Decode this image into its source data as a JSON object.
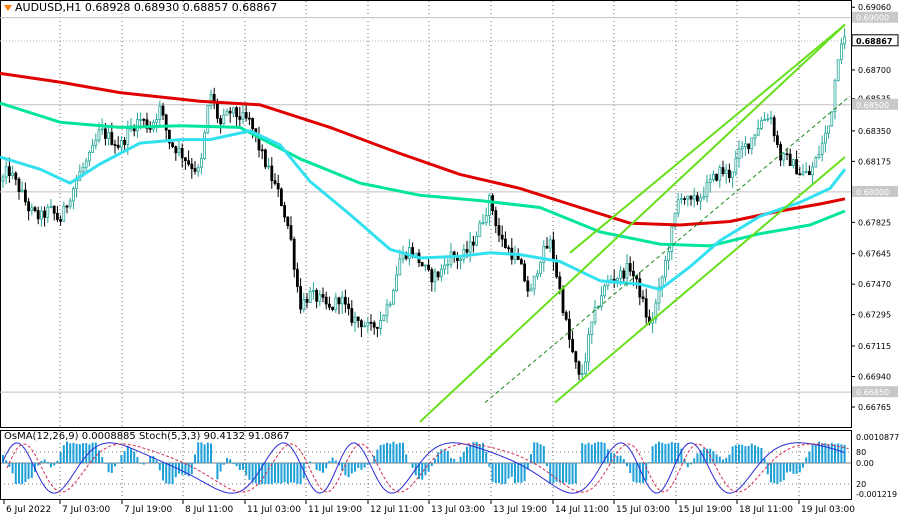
{
  "header": {
    "symbol": "AUDUSD,H1",
    "ohlc": "0.68928 0.68930 0.68857 0.68867",
    "arrow_icon": "triangle-down-icon"
  },
  "indicator": {
    "label": "OsMA(12,26,9) 0.0008885  Stoch(5,3,3) 90.4132 91.0867"
  },
  "colors": {
    "bull": "#26a69a",
    "bear": "#000000",
    "ma_red": "#e00000",
    "ma_green": "#00e59e",
    "ma_cyan": "#33e0f0",
    "channel": "#66e01a",
    "osma": "#1e9fd8",
    "stoch_main": "#2a2ad8",
    "stoch_signal": "#d23050",
    "grid": "#000000"
  },
  "chart_data": {
    "type": "candlestick",
    "price_axis": {
      "range": [
        0.6665,
        0.6909
      ],
      "ticks": [
        "0.69060",
        "0.68700",
        "0.68535",
        "0.68350",
        "0.68175",
        "0.67825",
        "0.67645",
        "0.67470",
        "0.67295",
        "0.67115",
        "0.66940",
        "0.66765"
      ],
      "marked_levels": [
        {
          "label": "0.69000",
          "value": 0.69
        },
        {
          "label": "0.68500",
          "value": 0.685
        },
        {
          "label": "0.68000",
          "value": 0.68
        },
        {
          "label": "0.66850",
          "value": 0.6685
        }
      ],
      "current_price": {
        "label": "0.68867",
        "value": 0.68867
      }
    },
    "time_axis": {
      "labels": [
        "6 Jul 2022",
        "7 Jul 03:00",
        "7 Jul 19:00",
        "8 Jul 11:00",
        "11 Jul 03:00",
        "11 Jul 19:00",
        "12 Jul 11:00",
        "13 Jul 03:00",
        "13 Jul 19:00",
        "14 Jul 11:00",
        "15 Jul 03:00",
        "15 Jul 19:00",
        "18 Jul 11:00",
        "19 Jul 03:00"
      ]
    },
    "price_path": [
      [
        0,
        0.6804
      ],
      [
        8,
        0.6813
      ],
      [
        20,
        0.6801
      ],
      [
        30,
        0.6789
      ],
      [
        40,
        0.6785
      ],
      [
        50,
        0.679
      ],
      [
        60,
        0.6783
      ],
      [
        70,
        0.6798
      ],
      [
        80,
        0.6811
      ],
      [
        90,
        0.682
      ],
      [
        100,
        0.6835
      ],
      [
        110,
        0.6831
      ],
      [
        120,
        0.6826
      ],
      [
        130,
        0.6836
      ],
      [
        140,
        0.6842
      ],
      [
        150,
        0.6837
      ],
      [
        160,
        0.6848
      ],
      [
        170,
        0.6828
      ],
      [
        180,
        0.6823
      ],
      [
        190,
        0.6816
      ],
      [
        200,
        0.6811
      ],
      [
        210,
        0.6858
      ],
      [
        220,
        0.6838
      ],
      [
        230,
        0.6846
      ],
      [
        240,
        0.6843
      ],
      [
        250,
        0.684
      ],
      [
        260,
        0.6824
      ],
      [
        270,
        0.681
      ],
      [
        280,
        0.6797
      ],
      [
        290,
        0.6776
      ],
      [
        300,
        0.6735
      ],
      [
        310,
        0.6741
      ],
      [
        320,
        0.6738
      ],
      [
        330,
        0.6732
      ],
      [
        340,
        0.674
      ],
      [
        350,
        0.6728
      ],
      [
        360,
        0.6726
      ],
      [
        370,
        0.6721
      ],
      [
        380,
        0.6726
      ],
      [
        390,
        0.6738
      ],
      [
        400,
        0.6762
      ],
      [
        410,
        0.6767
      ],
      [
        420,
        0.676
      ],
      [
        430,
        0.6751
      ],
      [
        440,
        0.6753
      ],
      [
        450,
        0.6764
      ],
      [
        460,
        0.6761
      ],
      [
        470,
        0.6768
      ],
      [
        480,
        0.678
      ],
      [
        490,
        0.6796
      ],
      [
        500,
        0.6773
      ],
      [
        510,
        0.6766
      ],
      [
        520,
        0.6758
      ],
      [
        530,
        0.674
      ],
      [
        540,
        0.6762
      ],
      [
        550,
        0.6771
      ],
      [
        560,
        0.6743
      ],
      [
        570,
        0.6713
      ],
      [
        580,
        0.6691
      ],
      [
        585,
        0.6703
      ],
      [
        590,
        0.672
      ],
      [
        600,
        0.674
      ],
      [
        610,
        0.675
      ],
      [
        620,
        0.6752
      ],
      [
        630,
        0.6757
      ],
      [
        640,
        0.6742
      ],
      [
        650,
        0.6722
      ],
      [
        660,
        0.6745
      ],
      [
        670,
        0.6772
      ],
      [
        680,
        0.68
      ],
      [
        690,
        0.6793
      ],
      [
        700,
        0.6797
      ],
      [
        710,
        0.6805
      ],
      [
        720,
        0.6812
      ],
      [
        730,
        0.681
      ],
      [
        740,
        0.6823
      ],
      [
        750,
        0.6829
      ],
      [
        760,
        0.684
      ],
      [
        770,
        0.6845
      ],
      [
        780,
        0.682
      ],
      [
        790,
        0.6818
      ],
      [
        800,
        0.6811
      ],
      [
        810,
        0.681
      ],
      [
        820,
        0.6824
      ],
      [
        830,
        0.684
      ],
      [
        840,
        0.6888
      ],
      [
        846,
        0.6887
      ]
    ],
    "series": [
      {
        "id": "ma_200",
        "color_key": "ma_red",
        "points": [
          [
            0,
            0.6868
          ],
          [
            60,
            0.6863
          ],
          [
            120,
            0.6857
          ],
          [
            200,
            0.6852
          ],
          [
            260,
            0.685
          ],
          [
            330,
            0.6837
          ],
          [
            400,
            0.6822
          ],
          [
            460,
            0.681
          ],
          [
            520,
            0.6802
          ],
          [
            580,
            0.6791
          ],
          [
            630,
            0.6782
          ],
          [
            680,
            0.6781
          ],
          [
            730,
            0.6783
          ],
          [
            780,
            0.6789
          ],
          [
            820,
            0.6793
          ],
          [
            845,
            0.6796
          ]
        ]
      },
      {
        "id": "ma_144",
        "color_key": "ma_green",
        "points": [
          [
            0,
            0.6851
          ],
          [
            60,
            0.684
          ],
          [
            120,
            0.6837
          ],
          [
            180,
            0.6838
          ],
          [
            240,
            0.6837
          ],
          [
            300,
            0.6819
          ],
          [
            360,
            0.6805
          ],
          [
            420,
            0.6798
          ],
          [
            480,
            0.6795
          ],
          [
            540,
            0.6791
          ],
          [
            600,
            0.6777
          ],
          [
            660,
            0.677
          ],
          [
            710,
            0.6769
          ],
          [
            760,
            0.6776
          ],
          [
            810,
            0.6781
          ],
          [
            845,
            0.6789
          ]
        ]
      },
      {
        "id": "ma_50",
        "color_key": "ma_cyan",
        "points": [
          [
            0,
            0.682
          ],
          [
            40,
            0.6813
          ],
          [
            70,
            0.6805
          ],
          [
            100,
            0.6816
          ],
          [
            140,
            0.6828
          ],
          [
            180,
            0.683
          ],
          [
            210,
            0.683
          ],
          [
            250,
            0.6835
          ],
          [
            280,
            0.6827
          ],
          [
            310,
            0.6806
          ],
          [
            350,
            0.6787
          ],
          [
            390,
            0.6767
          ],
          [
            420,
            0.6762
          ],
          [
            460,
            0.6763
          ],
          [
            490,
            0.6765
          ],
          [
            520,
            0.6764
          ],
          [
            560,
            0.676
          ],
          [
            600,
            0.6749
          ],
          [
            640,
            0.6747
          ],
          [
            660,
            0.6744
          ],
          [
            690,
            0.6757
          ],
          [
            720,
            0.6772
          ],
          [
            760,
            0.6786
          ],
          [
            800,
            0.6794
          ],
          [
            830,
            0.6802
          ],
          [
            845,
            0.6813
          ]
        ]
      }
    ],
    "channel": {
      "upper": [
        [
          570,
          0.6765
        ],
        [
          845,
          0.6896
        ]
      ],
      "lower": [
        [
          555,
          0.6679
        ],
        [
          845,
          0.682
        ]
      ],
      "outer_lower": [
        [
          420,
          0.6679
        ],
        [
          555,
          0.6679
        ]
      ],
      "mid_dashed": [
        [
          485,
          0.6679
        ],
        [
          850,
          0.6855
        ]
      ]
    },
    "subwindow": {
      "label": "OsMA(12,26,9) 0.0008885  Stoch(5,3,3) 90.4132 91.0867",
      "osma_value": 0.0008885,
      "stoch_main": 90.4132,
      "stoch_signal": 91.0867,
      "axis_ticks": [
        "0.0010877",
        "80",
        "0.00",
        "20",
        "-0.001219"
      ]
    }
  }
}
